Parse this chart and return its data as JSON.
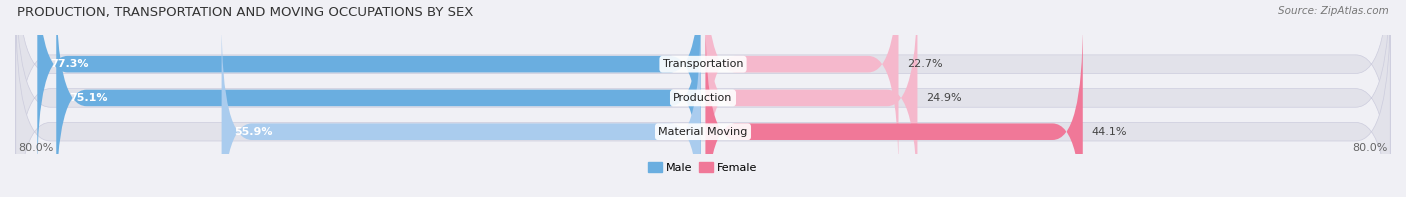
{
  "title": "PRODUCTION, TRANSPORTATION AND MOVING OCCUPATIONS BY SEX",
  "source": "Source: ZipAtlas.com",
  "categories": [
    "Transportation",
    "Production",
    "Material Moving"
  ],
  "male_values": [
    77.3,
    75.1,
    55.9
  ],
  "female_values": [
    22.7,
    24.9,
    44.1
  ],
  "male_color_dark": "#6aaee0",
  "male_color_light": "#aaccee",
  "female_color_dark": "#f07898",
  "female_color_light": "#f5b8cc",
  "bg_color": "#f0f0f5",
  "bar_bg_color": "#e2e2ea",
  "axis_max": 80.0,
  "title_fontsize": 9.5,
  "source_fontsize": 7.5,
  "bar_label_fontsize": 8,
  "category_fontsize": 8,
  "tick_fontsize": 8,
  "legend_labels": [
    "Male",
    "Female"
  ]
}
